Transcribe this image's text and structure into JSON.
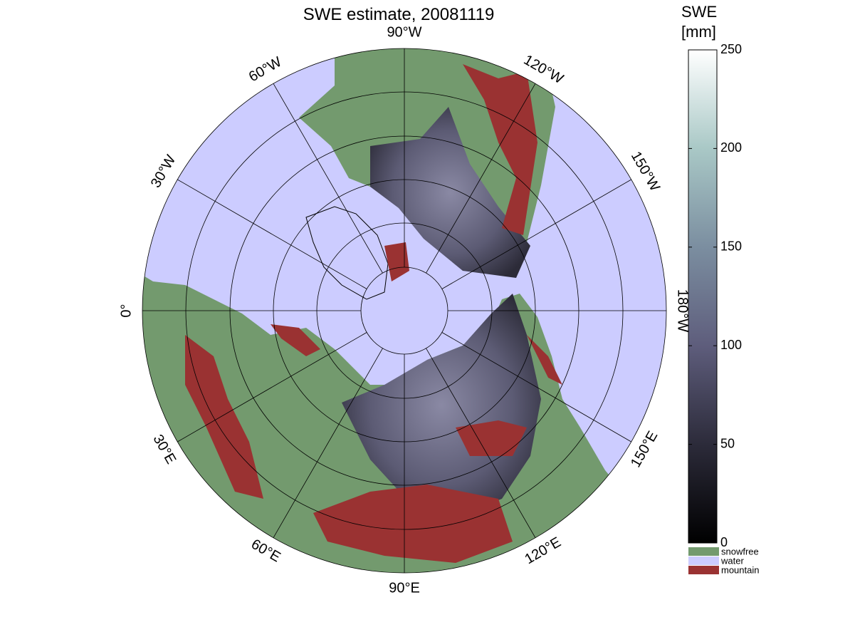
{
  "map": {
    "title": "SWE estimate, 20081119",
    "meridians": [
      "90°W",
      "120°W",
      "150°W",
      "180°W",
      "150°E",
      "120°E",
      "90°E",
      "60°E",
      "30°E",
      "0°",
      "30°W",
      "60°W"
    ],
    "colorbar": {
      "label": [
        "SWE",
        "[mm]"
      ],
      "lim": [
        0,
        250
      ],
      "ticks": [
        0,
        50,
        100,
        150,
        200,
        250
      ]
    },
    "legend": [
      {
        "name": "snowfree",
        "color": "#739a6e"
      },
      {
        "name": "water",
        "color": "#ccccff"
      },
      {
        "name": "mountain",
        "color": "#9a3232"
      }
    ]
  }
}
